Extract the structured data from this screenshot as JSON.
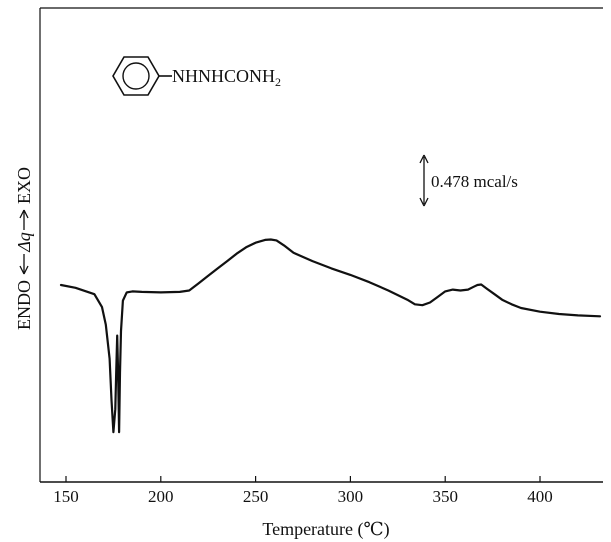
{
  "chart_data": {
    "type": "line",
    "title": "",
    "xlabel": "Temperature (℃)",
    "xlim": [
      140,
      435
    ],
    "xticks": [
      150,
      200,
      250,
      300,
      350,
      400
    ],
    "ylabel": {
      "left": "ENDO",
      "mid": "Δq",
      "right": "EXO"
    },
    "yticks": [],
    "grid": false,
    "annotation": {
      "compound_prefix": "NHNHCONH",
      "compound_subscript": "2",
      "scale_text": "0.478 mcal/s",
      "scale_value": 0.478,
      "scale_unit": "mcal/s"
    },
    "series": [
      {
        "x": [
          143,
          155,
          165,
          169,
          171,
          173,
          174,
          175,
          176,
          176.5,
          177,
          177.5,
          178,
          178.5,
          179,
          180,
          182,
          185,
          190,
          200,
          210,
          215,
          220,
          225,
          230,
          235,
          240,
          245,
          250,
          255,
          258,
          261,
          265,
          270,
          280,
          290,
          300,
          310,
          320,
          330,
          334,
          338,
          342,
          346,
          350,
          354,
          358,
          362,
          365,
          367,
          369,
          372,
          376,
          380,
          385,
          390,
          400,
          410,
          420,
          432
        ],
        "y": [
          0.0,
          -0.3,
          -1.0,
          -2.4,
          -4.3,
          -8.0,
          -12.5,
          -16.0,
          -13.5,
          -9.5,
          -5.5,
          -9.5,
          -16.0,
          -9.5,
          -5.0,
          -1.7,
          -0.8,
          -0.7,
          -0.75,
          -0.8,
          -0.75,
          -0.6,
          0.2,
          1.0,
          1.8,
          2.6,
          3.4,
          4.1,
          4.6,
          4.9,
          4.95,
          4.85,
          4.3,
          3.5,
          2.6,
          1.8,
          1.1,
          0.3,
          -0.6,
          -1.6,
          -2.1,
          -2.2,
          -1.9,
          -1.3,
          -0.7,
          -0.5,
          -0.6,
          -0.5,
          -0.2,
          0.0,
          0.05,
          -0.4,
          -1.0,
          -1.6,
          -2.1,
          -2.5,
          -2.9,
          -3.15,
          -3.3,
          -3.4
        ]
      }
    ]
  }
}
